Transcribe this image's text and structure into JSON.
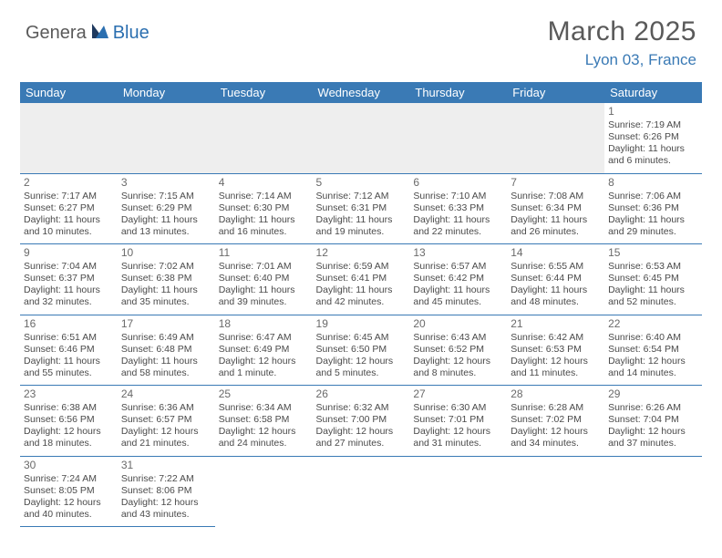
{
  "logo": {
    "part1": "Genera",
    "part2": "Blue"
  },
  "title": "March 2025",
  "location": "Lyon 03, France",
  "colors": {
    "header_bg": "#3a7ab5",
    "header_text": "#ffffff",
    "accent": "#3a7ab5",
    "logo_gray": "#5a5a5a",
    "logo_blue": "#2b6fb0",
    "cell_text": "#4a4a4a",
    "empty_bg": "#eeeeee"
  },
  "day_headers": [
    "Sunday",
    "Monday",
    "Tuesday",
    "Wednesday",
    "Thursday",
    "Friday",
    "Saturday"
  ],
  "weeks": [
    [
      null,
      null,
      null,
      null,
      null,
      null,
      {
        "n": "1",
        "sr": "Sunrise: 7:19 AM",
        "ss": "Sunset: 6:26 PM",
        "dl1": "Daylight: 11 hours",
        "dl2": "and 6 minutes."
      }
    ],
    [
      {
        "n": "2",
        "sr": "Sunrise: 7:17 AM",
        "ss": "Sunset: 6:27 PM",
        "dl1": "Daylight: 11 hours",
        "dl2": "and 10 minutes."
      },
      {
        "n": "3",
        "sr": "Sunrise: 7:15 AM",
        "ss": "Sunset: 6:29 PM",
        "dl1": "Daylight: 11 hours",
        "dl2": "and 13 minutes."
      },
      {
        "n": "4",
        "sr": "Sunrise: 7:14 AM",
        "ss": "Sunset: 6:30 PM",
        "dl1": "Daylight: 11 hours",
        "dl2": "and 16 minutes."
      },
      {
        "n": "5",
        "sr": "Sunrise: 7:12 AM",
        "ss": "Sunset: 6:31 PM",
        "dl1": "Daylight: 11 hours",
        "dl2": "and 19 minutes."
      },
      {
        "n": "6",
        "sr": "Sunrise: 7:10 AM",
        "ss": "Sunset: 6:33 PM",
        "dl1": "Daylight: 11 hours",
        "dl2": "and 22 minutes."
      },
      {
        "n": "7",
        "sr": "Sunrise: 7:08 AM",
        "ss": "Sunset: 6:34 PM",
        "dl1": "Daylight: 11 hours",
        "dl2": "and 26 minutes."
      },
      {
        "n": "8",
        "sr": "Sunrise: 7:06 AM",
        "ss": "Sunset: 6:36 PM",
        "dl1": "Daylight: 11 hours",
        "dl2": "and 29 minutes."
      }
    ],
    [
      {
        "n": "9",
        "sr": "Sunrise: 7:04 AM",
        "ss": "Sunset: 6:37 PM",
        "dl1": "Daylight: 11 hours",
        "dl2": "and 32 minutes."
      },
      {
        "n": "10",
        "sr": "Sunrise: 7:02 AM",
        "ss": "Sunset: 6:38 PM",
        "dl1": "Daylight: 11 hours",
        "dl2": "and 35 minutes."
      },
      {
        "n": "11",
        "sr": "Sunrise: 7:01 AM",
        "ss": "Sunset: 6:40 PM",
        "dl1": "Daylight: 11 hours",
        "dl2": "and 39 minutes."
      },
      {
        "n": "12",
        "sr": "Sunrise: 6:59 AM",
        "ss": "Sunset: 6:41 PM",
        "dl1": "Daylight: 11 hours",
        "dl2": "and 42 minutes."
      },
      {
        "n": "13",
        "sr": "Sunrise: 6:57 AM",
        "ss": "Sunset: 6:42 PM",
        "dl1": "Daylight: 11 hours",
        "dl2": "and 45 minutes."
      },
      {
        "n": "14",
        "sr": "Sunrise: 6:55 AM",
        "ss": "Sunset: 6:44 PM",
        "dl1": "Daylight: 11 hours",
        "dl2": "and 48 minutes."
      },
      {
        "n": "15",
        "sr": "Sunrise: 6:53 AM",
        "ss": "Sunset: 6:45 PM",
        "dl1": "Daylight: 11 hours",
        "dl2": "and 52 minutes."
      }
    ],
    [
      {
        "n": "16",
        "sr": "Sunrise: 6:51 AM",
        "ss": "Sunset: 6:46 PM",
        "dl1": "Daylight: 11 hours",
        "dl2": "and 55 minutes."
      },
      {
        "n": "17",
        "sr": "Sunrise: 6:49 AM",
        "ss": "Sunset: 6:48 PM",
        "dl1": "Daylight: 11 hours",
        "dl2": "and 58 minutes."
      },
      {
        "n": "18",
        "sr": "Sunrise: 6:47 AM",
        "ss": "Sunset: 6:49 PM",
        "dl1": "Daylight: 12 hours",
        "dl2": "and 1 minute."
      },
      {
        "n": "19",
        "sr": "Sunrise: 6:45 AM",
        "ss": "Sunset: 6:50 PM",
        "dl1": "Daylight: 12 hours",
        "dl2": "and 5 minutes."
      },
      {
        "n": "20",
        "sr": "Sunrise: 6:43 AM",
        "ss": "Sunset: 6:52 PM",
        "dl1": "Daylight: 12 hours",
        "dl2": "and 8 minutes."
      },
      {
        "n": "21",
        "sr": "Sunrise: 6:42 AM",
        "ss": "Sunset: 6:53 PM",
        "dl1": "Daylight: 12 hours",
        "dl2": "and 11 minutes."
      },
      {
        "n": "22",
        "sr": "Sunrise: 6:40 AM",
        "ss": "Sunset: 6:54 PM",
        "dl1": "Daylight: 12 hours",
        "dl2": "and 14 minutes."
      }
    ],
    [
      {
        "n": "23",
        "sr": "Sunrise: 6:38 AM",
        "ss": "Sunset: 6:56 PM",
        "dl1": "Daylight: 12 hours",
        "dl2": "and 18 minutes."
      },
      {
        "n": "24",
        "sr": "Sunrise: 6:36 AM",
        "ss": "Sunset: 6:57 PM",
        "dl1": "Daylight: 12 hours",
        "dl2": "and 21 minutes."
      },
      {
        "n": "25",
        "sr": "Sunrise: 6:34 AM",
        "ss": "Sunset: 6:58 PM",
        "dl1": "Daylight: 12 hours",
        "dl2": "and 24 minutes."
      },
      {
        "n": "26",
        "sr": "Sunrise: 6:32 AM",
        "ss": "Sunset: 7:00 PM",
        "dl1": "Daylight: 12 hours",
        "dl2": "and 27 minutes."
      },
      {
        "n": "27",
        "sr": "Sunrise: 6:30 AM",
        "ss": "Sunset: 7:01 PM",
        "dl1": "Daylight: 12 hours",
        "dl2": "and 31 minutes."
      },
      {
        "n": "28",
        "sr": "Sunrise: 6:28 AM",
        "ss": "Sunset: 7:02 PM",
        "dl1": "Daylight: 12 hours",
        "dl2": "and 34 minutes."
      },
      {
        "n": "29",
        "sr": "Sunrise: 6:26 AM",
        "ss": "Sunset: 7:04 PM",
        "dl1": "Daylight: 12 hours",
        "dl2": "and 37 minutes."
      }
    ],
    [
      {
        "n": "30",
        "sr": "Sunrise: 7:24 AM",
        "ss": "Sunset: 8:05 PM",
        "dl1": "Daylight: 12 hours",
        "dl2": "and 40 minutes."
      },
      {
        "n": "31",
        "sr": "Sunrise: 7:22 AM",
        "ss": "Sunset: 8:06 PM",
        "dl1": "Daylight: 12 hours",
        "dl2": "and 43 minutes."
      },
      null,
      null,
      null,
      null,
      null
    ]
  ]
}
